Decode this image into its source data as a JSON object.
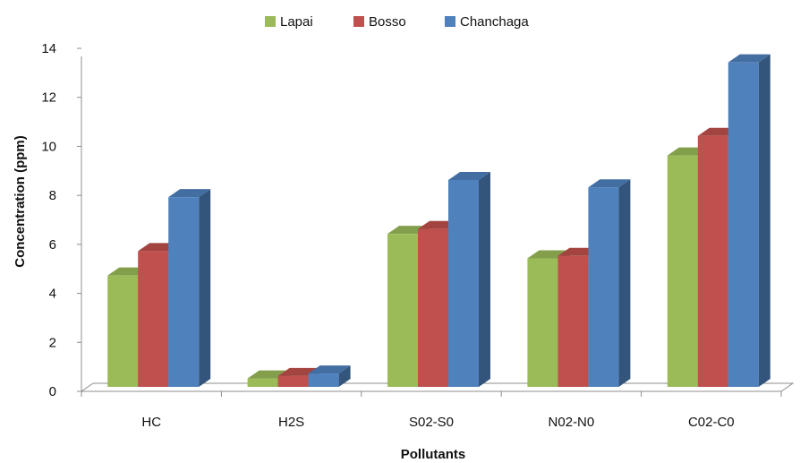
{
  "chart_data": {
    "type": "bar",
    "title": "",
    "xlabel": "Pollutants",
    "ylabel": "Concentration (ppm)",
    "categories": [
      "HC",
      "H2S",
      "S02-S0",
      "N02-N0",
      "C02-C0"
    ],
    "series": [
      {
        "name": "Lapai",
        "values": [
          4.8,
          0.6,
          6.5,
          5.5,
          9.7
        ],
        "color": "#9bbb59"
      },
      {
        "name": "Bosso",
        "values": [
          5.8,
          0.7,
          6.7,
          5.6,
          10.5
        ],
        "color": "#c0504d"
      },
      {
        "name": "Chanchaga",
        "values": [
          8.0,
          0.8,
          8.7,
          8.4,
          13.5
        ],
        "color": "#4f81bd"
      }
    ],
    "ylim": [
      0,
      14
    ],
    "yticks": [
      0,
      2,
      4,
      6,
      8,
      10,
      12,
      14
    ],
    "grid": false,
    "legend_position": "top-center",
    "three_d": true
  }
}
